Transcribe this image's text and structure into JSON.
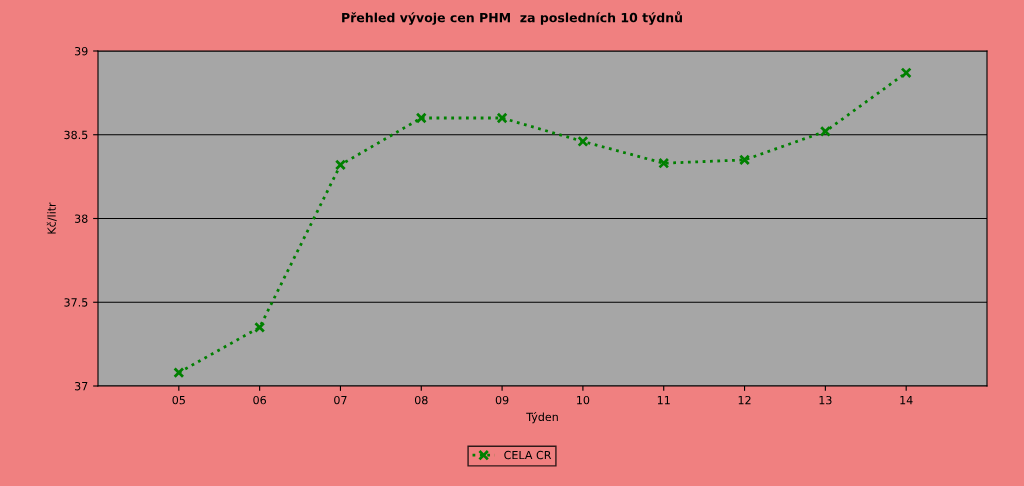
{
  "chart_data": {
    "type": "line",
    "title": "Přehled vývoje cen PHM  za posledních 10 týdnů",
    "xlabel": "Týden",
    "ylabel": "Kč/litr",
    "categories": [
      "05",
      "06",
      "07",
      "08",
      "09",
      "10",
      "11",
      "12",
      "13",
      "14"
    ],
    "series": [
      {
        "name": "CELA CR",
        "color": "#008000",
        "values": [
          37.08,
          37.35,
          38.32,
          38.6,
          38.6,
          38.46,
          38.33,
          38.35,
          38.52,
          38.87
        ]
      }
    ],
    "ylim": [
      37,
      39
    ],
    "yticks": [
      37,
      37.5,
      38,
      38.5,
      39
    ],
    "grid": "y",
    "legend": "bottom",
    "marker": "cross",
    "line_style": "dotted"
  }
}
